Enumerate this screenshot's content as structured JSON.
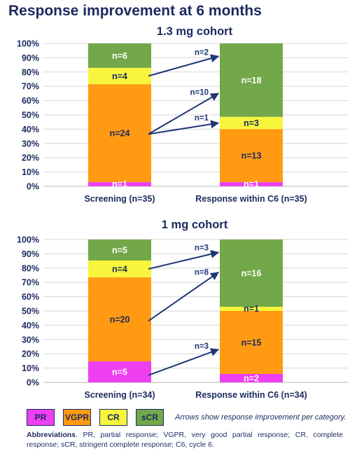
{
  "title": "Response improvement at 6 months",
  "colors": {
    "PR": "#ee3ff0",
    "VGPR": "#ff9a12",
    "CR": "#f7f53c",
    "sCR": "#72a849",
    "arrow": "#1f3776",
    "text": "#1b2a5e"
  },
  "chart_data": [
    {
      "type": "bar",
      "stacked": true,
      "title": "1.3 mg cohort",
      "categories": [
        "Screening (n=35)",
        "Response within C6 (n=35)"
      ],
      "yticks": [
        "0%",
        "10%",
        "20%",
        "30%",
        "40%",
        "50%",
        "60%",
        "70%",
        "80%",
        "90%",
        "100%"
      ],
      "ylim": [
        0,
        100
      ],
      "grid": true,
      "series": [
        {
          "name": "PR",
          "values": [
            2.9,
            2.9
          ],
          "labels": [
            "n=1",
            "n=1"
          ]
        },
        {
          "name": "VGPR",
          "values": [
            68.6,
            37.1
          ],
          "labels": [
            "n=24",
            "n=13"
          ]
        },
        {
          "name": "CR",
          "values": [
            11.4,
            8.6
          ],
          "labels": [
            "n=4",
            "n=3"
          ]
        },
        {
          "name": "sCR",
          "values": [
            17.1,
            51.4
          ],
          "labels": [
            "n=6",
            "n=18"
          ]
        }
      ],
      "arrows": [
        {
          "label": "n=2",
          "from": "CR",
          "to": "sCR"
        },
        {
          "label": "n=10",
          "from": "VGPR",
          "to": "sCR"
        },
        {
          "label": "n=1",
          "from": "VGPR",
          "to": "CR"
        }
      ]
    },
    {
      "type": "bar",
      "stacked": true,
      "title": "1 mg cohort",
      "categories": [
        "Screening (n=34)",
        "Response within C6 (n=34)"
      ],
      "yticks": [
        "0%",
        "10%",
        "20%",
        "30%",
        "40%",
        "50%",
        "60%",
        "70%",
        "80%",
        "90%",
        "100%"
      ],
      "ylim": [
        0,
        100
      ],
      "grid": true,
      "series": [
        {
          "name": "PR",
          "values": [
            14.7,
            5.9
          ],
          "labels": [
            "n=5",
            "n=2"
          ]
        },
        {
          "name": "VGPR",
          "values": [
            58.8,
            44.1
          ],
          "labels": [
            "n=20",
            "n=15"
          ]
        },
        {
          "name": "CR",
          "values": [
            11.8,
            2.9
          ],
          "labels": [
            "n=4",
            "n=1"
          ]
        },
        {
          "name": "sCR",
          "values": [
            14.7,
            47.1
          ],
          "labels": [
            "n=5",
            "n=16"
          ]
        }
      ],
      "arrows": [
        {
          "label": "n=3",
          "from": "CR",
          "to": "sCR"
        },
        {
          "label": "n=8",
          "from": "VGPR",
          "to": "sCR"
        },
        {
          "label": "n=3",
          "from": "PR",
          "to": "VGPR"
        }
      ]
    }
  ],
  "legend": [
    "PR",
    "VGPR",
    "CR",
    "sCR"
  ],
  "arrows_note": "Arrows show response improvement per category.",
  "footnote": {
    "heading": "Abbreviations",
    "text": ". PR, partial response; VGPR, very good partial response; CR, complete response; sCR, stringent complete response; C6, cycle 6."
  }
}
